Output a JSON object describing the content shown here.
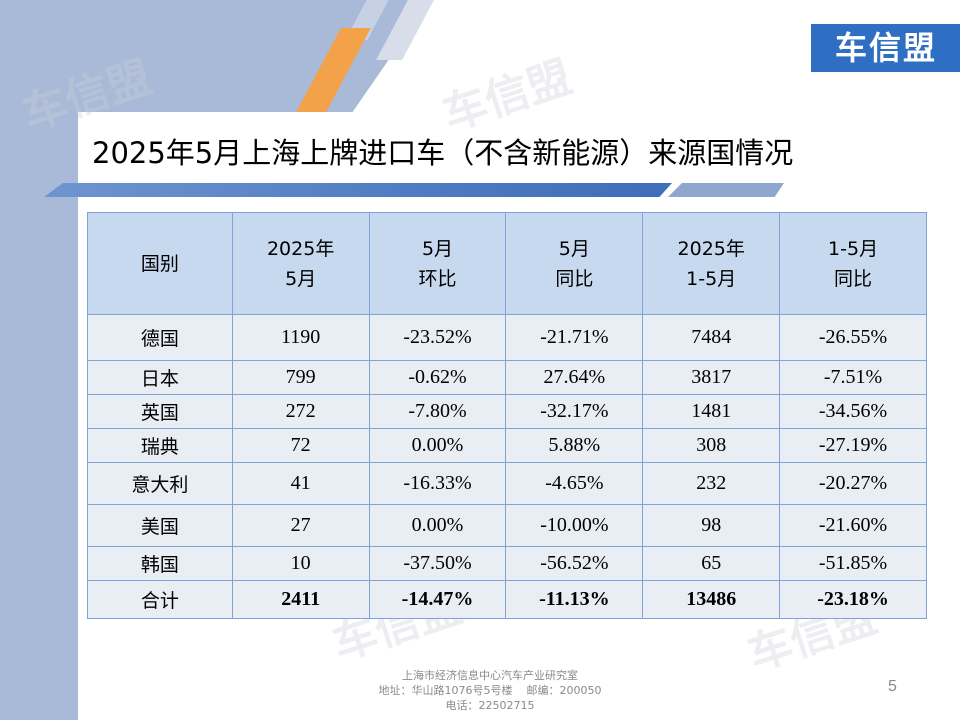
{
  "logo": "车信盟",
  "watermark": "车信盟",
  "title": "2025年5月上海上牌进口车（不含新能源）来源国情况",
  "table": {
    "headers": [
      [
        "国别"
      ],
      [
        "2025年",
        "5月"
      ],
      [
        "5月",
        "环比"
      ],
      [
        "5月",
        "同比"
      ],
      [
        "2025年",
        "1-5月"
      ],
      [
        "1-5月",
        "同比"
      ]
    ],
    "rows": [
      [
        "德国",
        "1190",
        "-23.52%",
        "-21.71%",
        "7484",
        "-26.55%"
      ],
      [
        "日本",
        "799",
        "-0.62%",
        "27.64%",
        "3817",
        "-7.51%"
      ],
      [
        "英国",
        "272",
        "-7.80%",
        "-32.17%",
        "1481",
        "-34.56%"
      ],
      [
        "瑞典",
        "72",
        "0.00%",
        "5.88%",
        "308",
        "-27.19%"
      ],
      [
        "意大利",
        "41",
        "-16.33%",
        "-4.65%",
        "232",
        "-20.27%"
      ],
      [
        "美国",
        "27",
        "0.00%",
        "-10.00%",
        "98",
        "-21.60%"
      ],
      [
        "韩国",
        "10",
        "-37.50%",
        "-56.52%",
        "65",
        "-51.85%"
      ],
      [
        "合计",
        "2411",
        "-14.47%",
        "-11.13%",
        "13486",
        "-23.18%"
      ]
    ]
  },
  "footer": {
    "line1": "上海市经济信息中心汽车产业研究室",
    "line2": "地址：华山路1076号5号楼    邮编：200050",
    "line3": "电话：22502715"
  },
  "page_number": "5",
  "colors": {
    "header_bg": "#c7d9ef",
    "cell_bg": "#e9edf4",
    "border": "#7fa3d4",
    "logo_bg": "#2f6fc3",
    "accent_orange": "#f4a24a",
    "side_blue": "#a9bad8"
  }
}
